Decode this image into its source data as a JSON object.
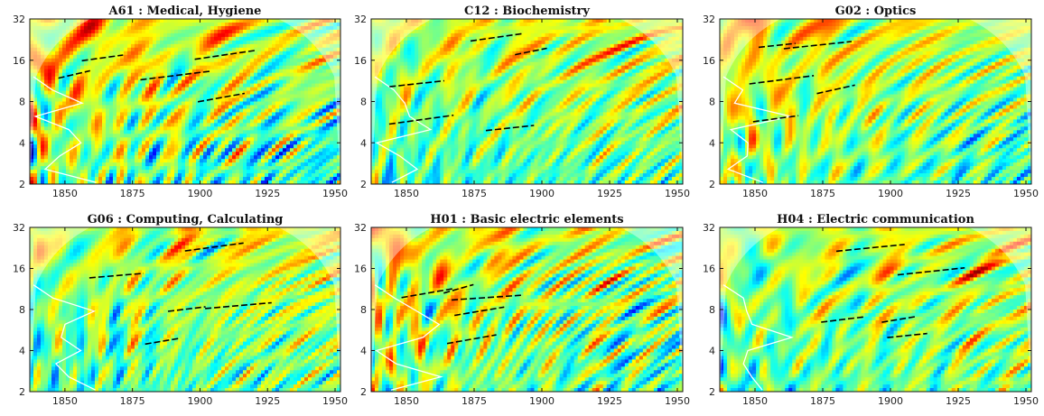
{
  "chart_data": [
    {
      "type": "heatmap",
      "title": "A61 : Medical, Hygiene",
      "xticks": [
        1850,
        1875,
        1900,
        1925,
        1950
      ],
      "yticks": [
        2,
        4,
        8,
        16,
        32
      ],
      "xlim": [
        1837,
        1952
      ],
      "ylim": [
        2,
        32
      ],
      "y_scale": "log2",
      "colormap": "jet",
      "seed": 3
    },
    {
      "type": "heatmap",
      "title": "C12 : Biochemistry",
      "xticks": [
        1850,
        1875,
        1900,
        1925,
        1950
      ],
      "yticks": [
        2,
        4,
        8,
        16,
        32
      ],
      "xlim": [
        1837,
        1952
      ],
      "ylim": [
        2,
        32
      ],
      "y_scale": "log2",
      "colormap": "jet",
      "seed": 11
    },
    {
      "type": "heatmap",
      "title": "G02 : Optics",
      "xticks": [
        1850,
        1875,
        1900,
        1925,
        1950
      ],
      "yticks": [
        2,
        4,
        8,
        16,
        32
      ],
      "xlim": [
        1837,
        1952
      ],
      "ylim": [
        2,
        32
      ],
      "y_scale": "log2",
      "colormap": "jet",
      "seed": 19
    },
    {
      "type": "heatmap",
      "title": "G06 : Computing, Calculating",
      "xticks": [
        1850,
        1875,
        1900,
        1925,
        1950
      ],
      "yticks": [
        2,
        4,
        8,
        16,
        32
      ],
      "xlim": [
        1837,
        1952
      ],
      "ylim": [
        2,
        32
      ],
      "y_scale": "log2",
      "colormap": "jet",
      "seed": 27
    },
    {
      "type": "heatmap",
      "title": "H01 : Basic electric elements",
      "xticks": [
        1850,
        1875,
        1900,
        1925,
        1950
      ],
      "yticks": [
        2,
        4,
        8,
        16,
        32
      ],
      "xlim": [
        1837,
        1952
      ],
      "ylim": [
        2,
        32
      ],
      "y_scale": "log2",
      "colormap": "jet",
      "seed": 35
    },
    {
      "type": "heatmap",
      "title": "H04 : Electric communication",
      "xticks": [
        1850,
        1875,
        1900,
        1925,
        1950
      ],
      "yticks": [
        2,
        4,
        8,
        16,
        32
      ],
      "xlim": [
        1837,
        1952
      ],
      "ylim": [
        2,
        32
      ],
      "y_scale": "log2",
      "colormap": "jet",
      "seed": 43
    }
  ]
}
